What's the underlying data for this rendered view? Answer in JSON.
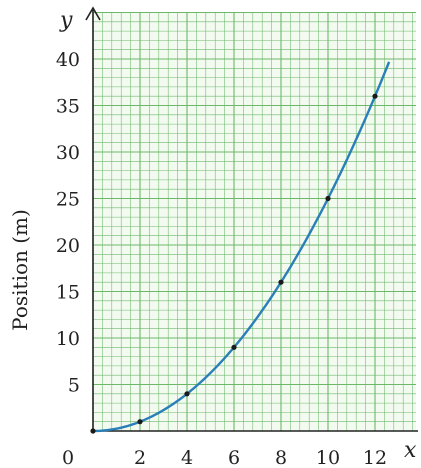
{
  "chart_data": {
    "type": "line",
    "title": "",
    "xlabel": "x",
    "ylabel": "Position (m)",
    "y_axis_letter": "y",
    "origin_label": "0",
    "xlim": [
      0,
      13.5
    ],
    "ylim": [
      0,
      41
    ],
    "x_ticks": [
      2,
      4,
      6,
      8,
      10,
      12
    ],
    "y_ticks": [
      5,
      10,
      15,
      20,
      25,
      30,
      35,
      40
    ],
    "x_tick_labels": [
      "2",
      "4",
      "6",
      "8",
      "10",
      "12"
    ],
    "y_tick_labels": [
      "5",
      "10",
      "15",
      "20",
      "25",
      "30",
      "35",
      "40"
    ],
    "grid": true,
    "grid_color": "#6db86b",
    "curve_color": "#2a7fb8",
    "point_color": "#1a1a1a",
    "series": [
      {
        "name": "",
        "points": [
          {
            "x": 0,
            "y": 0
          },
          {
            "x": 2,
            "y": 1
          },
          {
            "x": 4,
            "y": 4
          },
          {
            "x": 6,
            "y": 9
          },
          {
            "x": 8,
            "y": 16
          },
          {
            "x": 10,
            "y": 25
          },
          {
            "x": 12,
            "y": 36
          }
        ],
        "curve": "y = x^2 / 4",
        "curve_x_range": [
          0,
          12.6
        ]
      }
    ]
  }
}
